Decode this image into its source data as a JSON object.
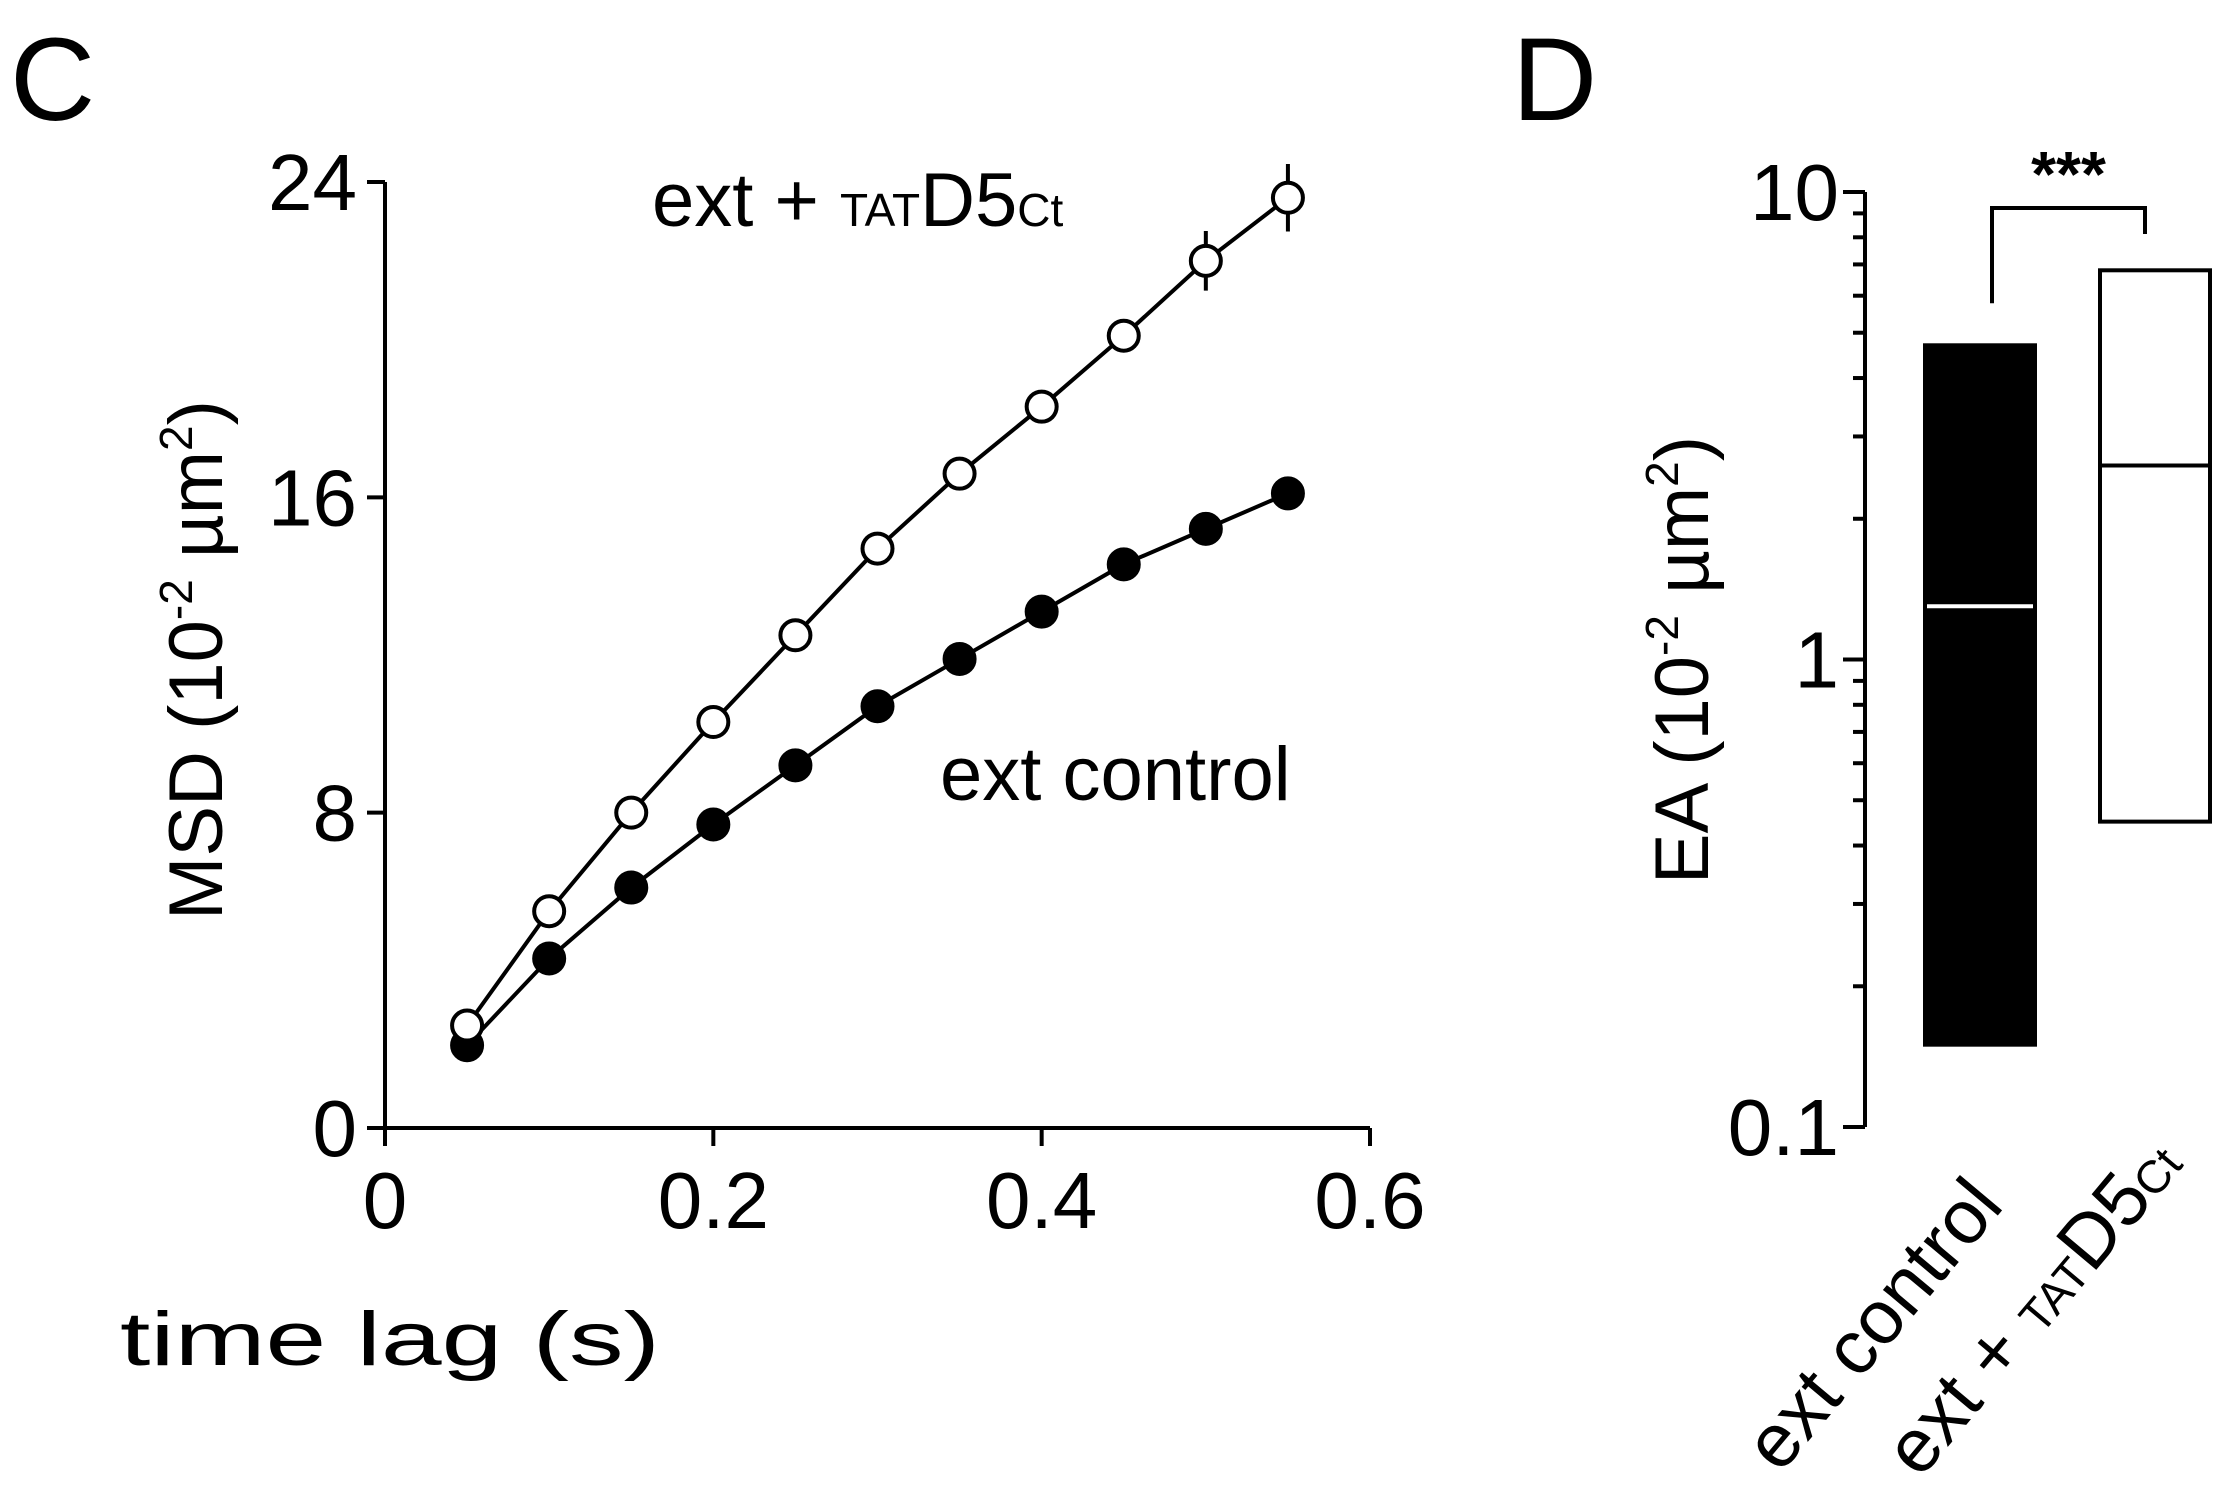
{
  "chart_data": [
    {
      "panel": "C",
      "type": "line",
      "xlabel": "time lag (s)",
      "ylabel": "MSD (10",
      "ylabel_exp": "-2",
      "ylabel_unit": " µm",
      "ylabel_unit_exp": "2",
      "ylabel_close": ")",
      "xlim": [
        0,
        0.6
      ],
      "ylim": [
        0,
        24
      ],
      "xticks": [
        0,
        0.2,
        0.4,
        0.6
      ],
      "xtick_labels": [
        "0",
        "0.2",
        "0.4",
        "0.6"
      ],
      "yticks": [
        0,
        8,
        16,
        24
      ],
      "ytick_labels": [
        "0",
        "8",
        "16",
        "24"
      ],
      "grid": false,
      "x": [
        0.05,
        0.1,
        0.15,
        0.2,
        0.25,
        0.3,
        0.35,
        0.4,
        0.45,
        0.5,
        0.55
      ],
      "series": [
        {
          "name": "ext + TATD5Ct",
          "label_main": "ext + ",
          "label_sub": "TAT",
          "label_mid": "D5",
          "label_sub2": "Ct",
          "marker": "open-circle",
          "values": [
            2.6,
            5.5,
            8.0,
            10.3,
            12.5,
            14.7,
            16.6,
            18.3,
            20.1,
            22.0,
            23.6
          ],
          "errors": [
            0,
            0,
            0,
            0,
            0,
            0,
            0,
            0,
            0,
            0.35,
            0.45
          ]
        },
        {
          "name": "ext control",
          "label_main": "ext control",
          "marker": "filled-circle",
          "values": [
            2.1,
            4.3,
            6.1,
            7.7,
            9.2,
            10.7,
            11.9,
            13.1,
            14.3,
            15.2,
            16.1
          ],
          "errors": [
            0,
            0,
            0,
            0,
            0,
            0,
            0,
            0,
            0,
            0,
            0
          ]
        }
      ]
    },
    {
      "panel": "D",
      "type": "bar",
      "yscale": "log",
      "ylabel": "EA (10",
      "ylabel_exp": "-2",
      "ylabel_unit": " µm",
      "ylabel_unit_exp": "2",
      "ylabel_close": ")",
      "ylim": [
        0.1,
        10
      ],
      "yticks": [
        0.1,
        1,
        10
      ],
      "ytick_labels": [
        "0.1",
        "1",
        "10"
      ],
      "significance": "***",
      "categories": [
        {
          "name": "ext control",
          "label_main": "ext control",
          "fill": "#000000",
          "median_color": "#ffffff",
          "low": 0.15,
          "median": 1.3,
          "high": 4.7
        },
        {
          "name": "ext + TATD5Ct",
          "label_main": "ext + ",
          "label_sub": "TAT",
          "label_mid": "D5",
          "label_sub2": "Ct",
          "fill": "#ffffff",
          "median_color": "#000000",
          "low": 0.45,
          "median": 2.6,
          "high": 6.8
        }
      ]
    }
  ]
}
